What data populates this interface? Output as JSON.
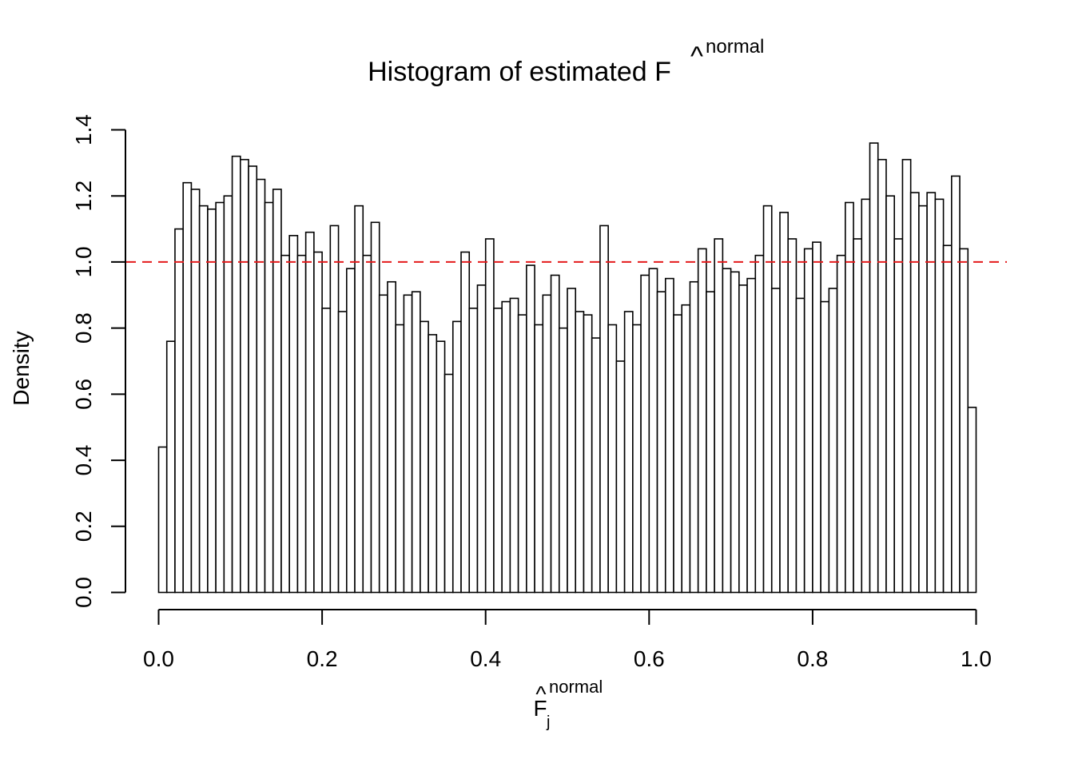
{
  "chart_data": {
    "type": "bar",
    "title_main": "Histogram of estimated F",
    "title_sup": "normal",
    "title_hat": "^",
    "xlabel_main": "F",
    "xlabel_sub": "j",
    "xlabel_sup": "normal",
    "xlabel_hat": "^",
    "ylabel": "Density",
    "xlim": [
      0,
      1
    ],
    "ylim": [
      0,
      1.4
    ],
    "bin_width": 0.01,
    "x_ticks": [
      "0.0",
      "0.2",
      "0.4",
      "0.6",
      "0.8",
      "1.0"
    ],
    "y_ticks": [
      "0.0",
      "0.2",
      "0.4",
      "0.6",
      "0.8",
      "1.0",
      "1.2",
      "1.4"
    ],
    "reference_line": {
      "y": 1.0,
      "color": "#e41a1c",
      "style": "dashed"
    },
    "values": [
      0.44,
      0.76,
      1.1,
      1.24,
      1.22,
      1.17,
      1.16,
      1.18,
      1.2,
      1.32,
      1.31,
      1.29,
      1.25,
      1.18,
      1.22,
      1.02,
      1.08,
      1.02,
      1.09,
      1.03,
      0.86,
      1.11,
      0.85,
      0.98,
      1.17,
      1.02,
      1.12,
      0.9,
      0.94,
      0.81,
      0.9,
      0.91,
      0.82,
      0.78,
      0.76,
      0.66,
      0.82,
      1.03,
      0.86,
      0.93,
      1.07,
      0.86,
      0.88,
      0.89,
      0.84,
      0.99,
      0.81,
      0.9,
      0.96,
      0.8,
      0.92,
      0.85,
      0.84,
      0.77,
      1.11,
      0.81,
      0.7,
      0.85,
      0.81,
      0.96,
      0.98,
      0.91,
      0.95,
      0.84,
      0.87,
      0.94,
      1.04,
      0.91,
      1.07,
      0.98,
      0.97,
      0.93,
      0.95,
      1.02,
      1.17,
      0.92,
      1.15,
      1.07,
      0.89,
      1.04,
      1.06,
      0.88,
      0.92,
      1.02,
      1.18,
      1.07,
      1.19,
      1.36,
      1.31,
      1.2,
      1.07,
      1.31,
      1.21,
      1.17,
      1.21,
      1.19,
      1.05,
      1.26,
      1.04,
      0.56
    ]
  }
}
